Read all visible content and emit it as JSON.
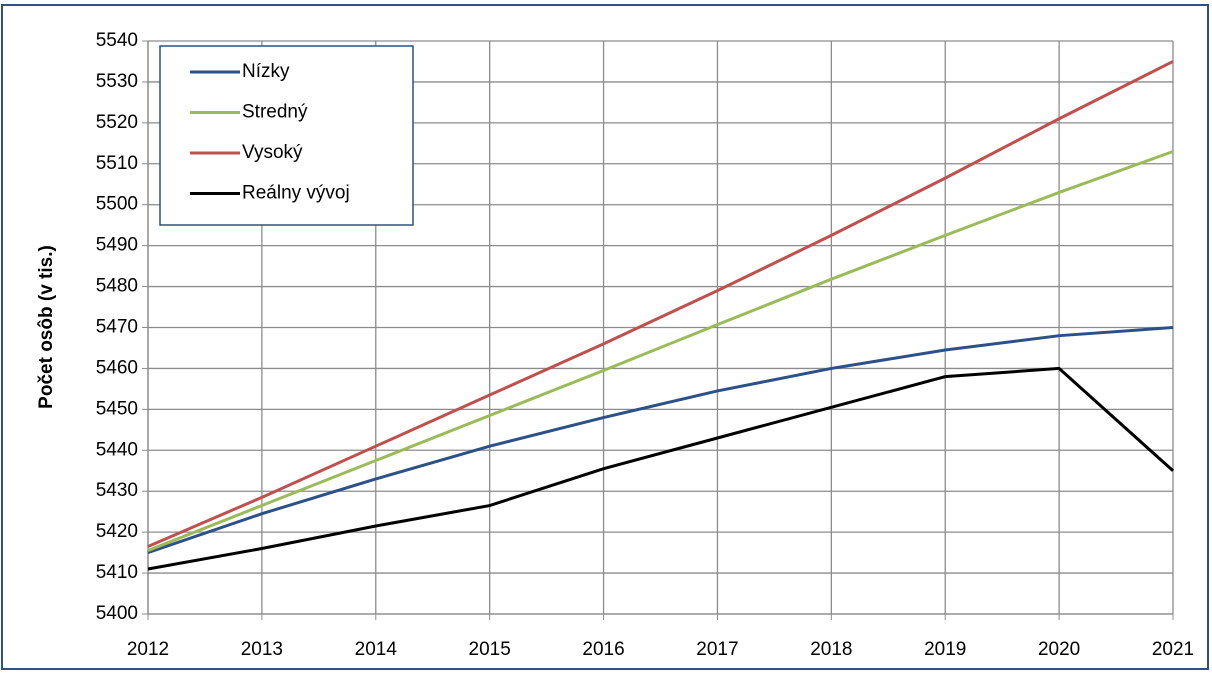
{
  "chart_data": {
    "type": "line",
    "y_label": "Počet osôb (v tis.)",
    "x": [
      2012,
      2013,
      2014,
      2015,
      2016,
      2017,
      2018,
      2019,
      2020,
      2021
    ],
    "xlim": [
      2012,
      2021
    ],
    "xticks": [
      2012,
      2013,
      2014,
      2015,
      2016,
      2017,
      2018,
      2019,
      2020,
      2021
    ],
    "ylim": [
      5400,
      5540
    ],
    "yticks": [
      5400,
      5410,
      5420,
      5430,
      5440,
      5450,
      5460,
      5470,
      5480,
      5490,
      5500,
      5510,
      5520,
      5530,
      5540
    ],
    "grid": true,
    "legend": "upper-left",
    "series": [
      {
        "name": "Nízky",
        "color": "#2c5088",
        "values": [
          5415,
          5424.5,
          5433,
          5441,
          5448,
          5454.5,
          5460,
          5464.5,
          5468,
          5470
        ]
      },
      {
        "name": "Stredný",
        "color": "#9bbb59",
        "values": [
          5415.5,
          5426.5,
          5437.5,
          5448.5,
          5459.5,
          5470.7,
          5481.8,
          5492.5,
          5503,
          5513
        ]
      },
      {
        "name": "Vysoký",
        "color": "#c0504d",
        "values": [
          5416.5,
          5428.5,
          5441,
          5453.5,
          5466,
          5479,
          5492.5,
          5506.5,
          5521,
          5535
        ]
      },
      {
        "name": "Reálny vývoj",
        "color": "#000000",
        "values": [
          5411,
          5416,
          5421.5,
          5426.5,
          5435.5,
          5443,
          5450.5,
          5458,
          5460,
          5435
        ]
      }
    ]
  }
}
